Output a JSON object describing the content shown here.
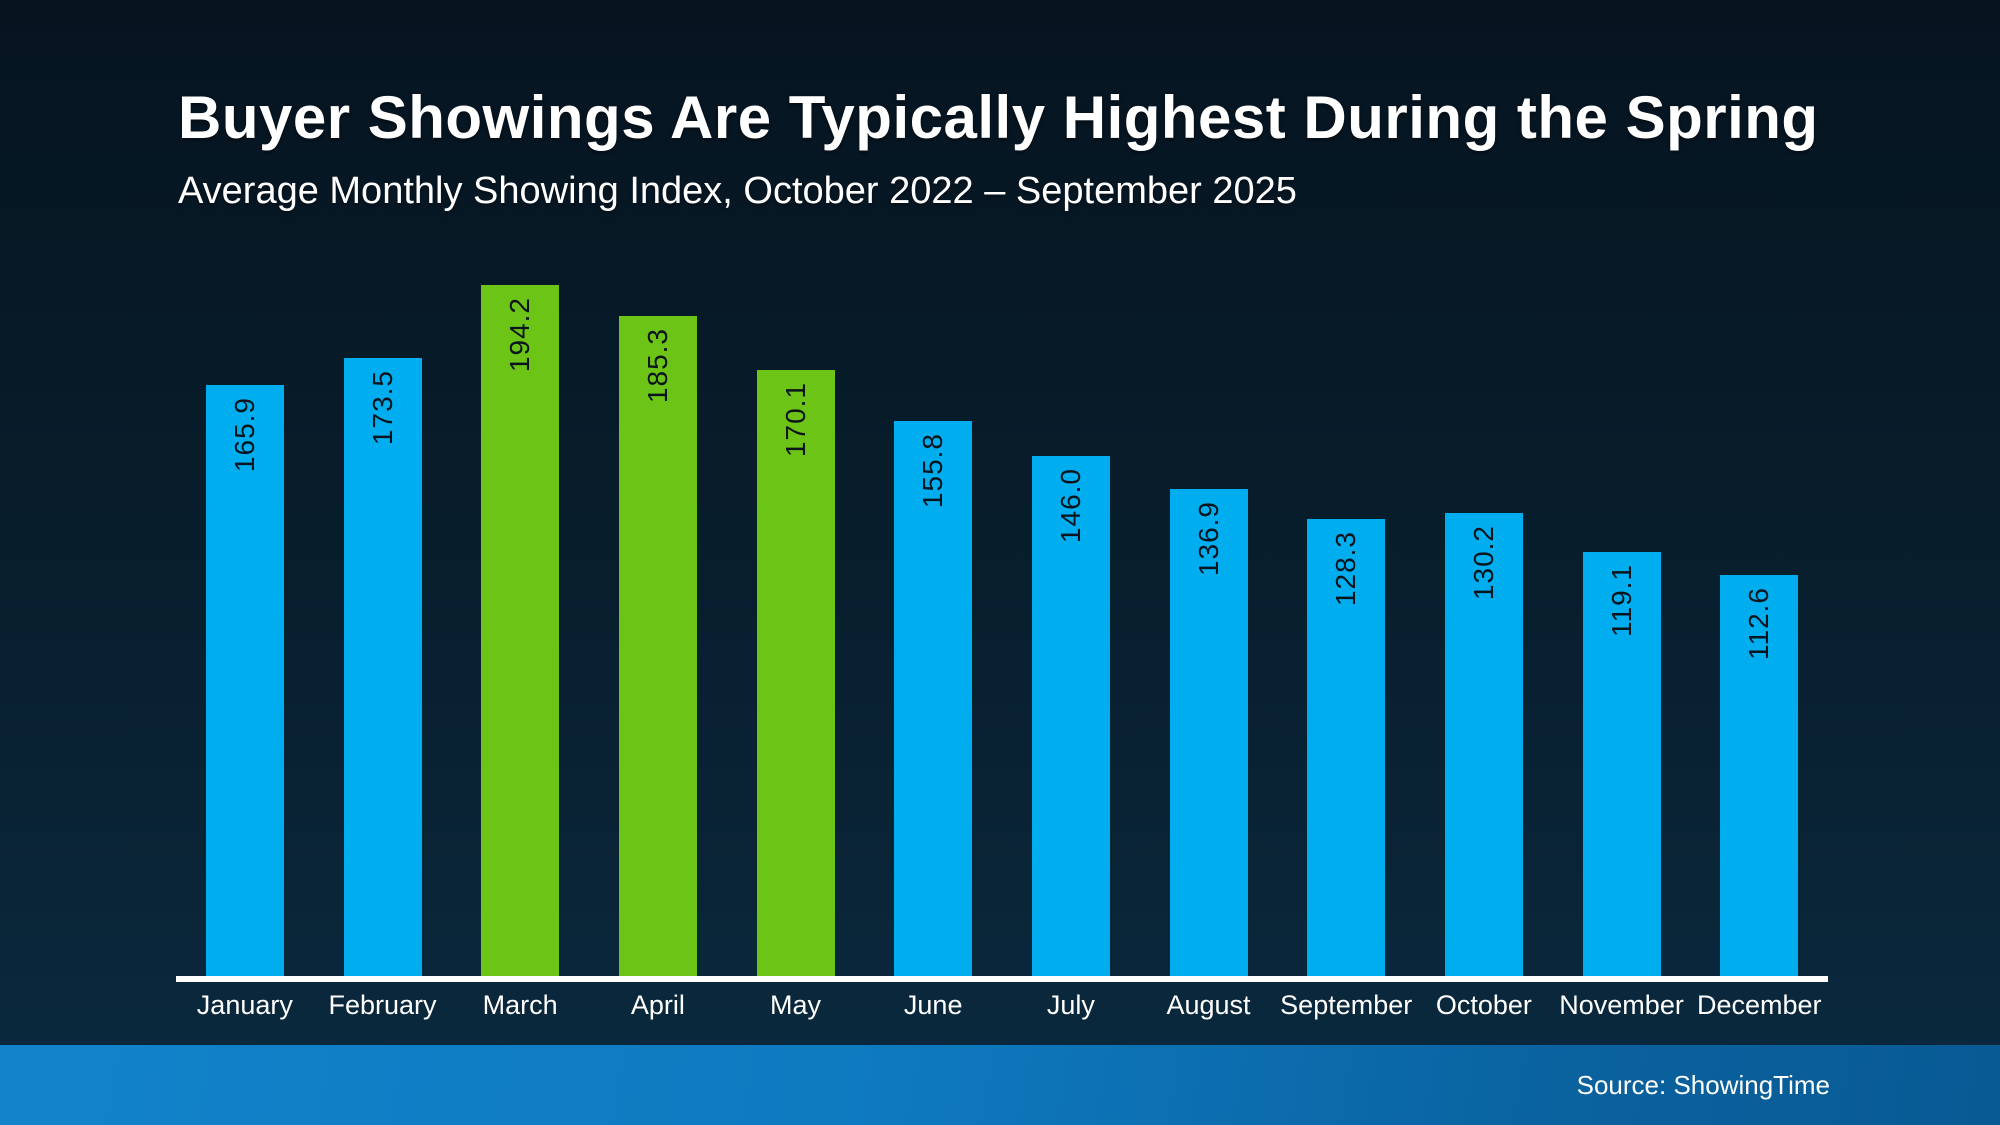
{
  "header": {
    "title": "Buyer Showings Are Typically Highest During the Spring",
    "subtitle": "Average Monthly Showing Index, October 2022 – September 2025"
  },
  "footer": {
    "source_label": "Source: ShowingTime"
  },
  "chart_data": {
    "type": "bar",
    "title": "Buyer Showings Are Typically Highest During the Spring",
    "subtitle": "Average Monthly Showing Index, October 2022 – September 2025",
    "categories": [
      "January",
      "February",
      "March",
      "April",
      "May",
      "June",
      "July",
      "August",
      "September",
      "October",
      "November",
      "December"
    ],
    "values": [
      165.9,
      173.5,
      194.2,
      185.3,
      170.1,
      155.8,
      146.0,
      136.9,
      128.3,
      130.2,
      119.1,
      112.6
    ],
    "value_label_format": "one_decimal",
    "value_label_rotation_deg": -90,
    "highlight_categories": [
      "March",
      "April",
      "May"
    ],
    "colors": {
      "bar_default": "#00AEEF",
      "bar_highlight": "#6CC417",
      "value_label": "#0A141C",
      "axis_line": "#FFFFFF",
      "axis_tick_label": "#FFFFFF",
      "background_top": "#061420",
      "background_bottom": "#0B2A40",
      "footer_band_left": "#1283CB",
      "footer_band_right": "#085A94"
    },
    "ylim": [
      0,
      200
    ],
    "grid": false,
    "legend": false,
    "xlabel": "",
    "ylabel": ""
  }
}
